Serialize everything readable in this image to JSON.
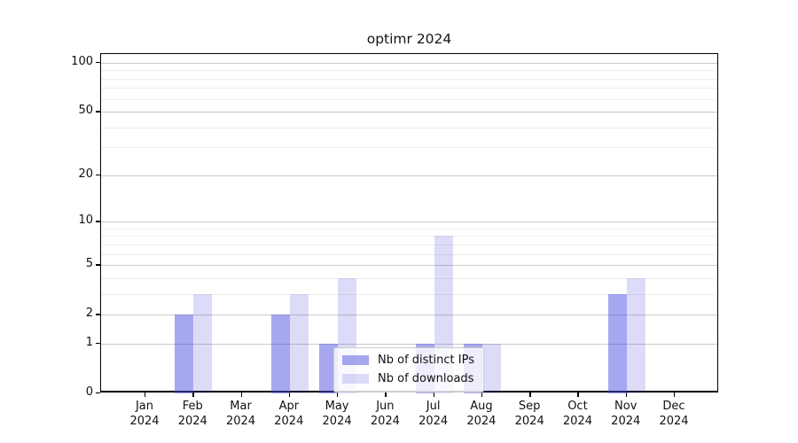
{
  "chart_data": {
    "type": "bar",
    "title": "optimr 2024",
    "categories": [
      "Jan",
      "Feb",
      "Mar",
      "Apr",
      "May",
      "Jun",
      "Jul",
      "Aug",
      "Sep",
      "Oct",
      "Nov",
      "Dec"
    ],
    "year": "2024",
    "series": [
      {
        "name": "Nb of distinct IPs",
        "color": "#5050e1",
        "alpha": 0.5,
        "values": [
          0,
          2,
          0,
          2,
          1,
          0,
          1,
          1,
          0,
          0,
          3,
          0
        ]
      },
      {
        "name": "Nb of downloads",
        "color": "#5050e1",
        "alpha": 0.2,
        "values": [
          0,
          3,
          0,
          3,
          4,
          0,
          8,
          1,
          0,
          0,
          4,
          0
        ]
      }
    ],
    "yscale": "log1p",
    "ylim": [
      0,
      113
    ],
    "y_major_ticks": [
      0,
      1,
      2,
      5,
      10,
      20,
      50,
      100
    ],
    "y_minor_ticks": [
      3,
      4,
      6,
      7,
      8,
      9,
      30,
      40,
      60,
      70,
      80,
      90
    ],
    "grid": true,
    "legend_position": "lower center",
    "colors": {
      "major_grid": "#c9c9c9",
      "minor_grid": "#ededed",
      "axis": "#000000",
      "background": "#ffffff",
      "text": "#111111"
    }
  }
}
